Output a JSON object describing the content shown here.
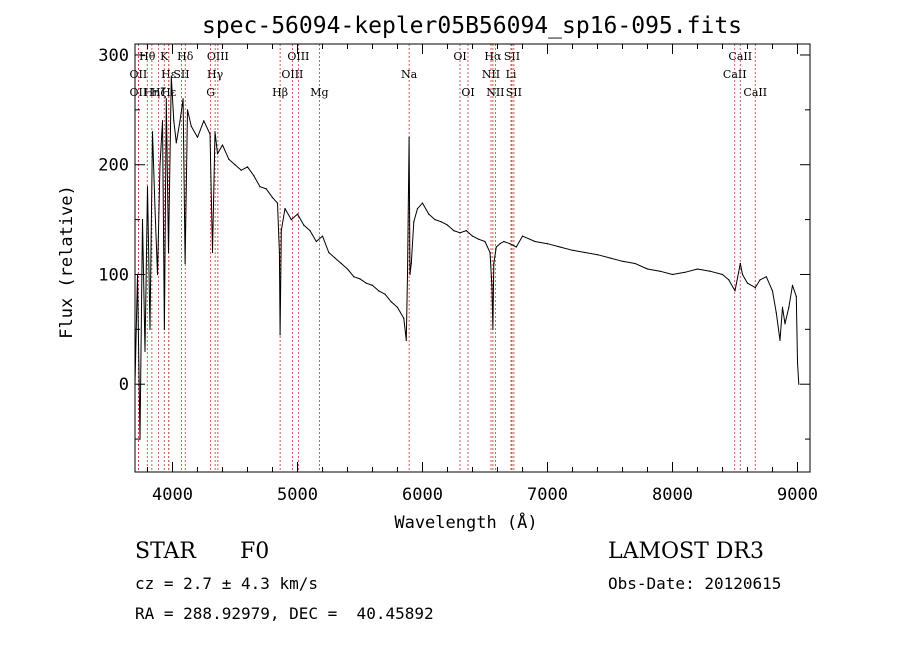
{
  "chart_data": {
    "type": "line",
    "title": "spec-56094-kepler05B56094_sp16-095.fits",
    "xlabel": "Wavelength (Å)",
    "ylabel": "Flux (relative)",
    "xlim": [
      3700,
      9100
    ],
    "ylim": [
      -80,
      310
    ],
    "xticks": [
      4000,
      5000,
      6000,
      7000,
      8000,
      9000
    ],
    "yticks": [
      0,
      100,
      200,
      300
    ],
    "grid": false,
    "series": [
      {
        "name": "spectrum",
        "x": [
          3700,
          3720,
          3740,
          3760,
          3780,
          3800,
          3820,
          3840,
          3860,
          3880,
          3900,
          3920,
          3935,
          3950,
          3968,
          3990,
          4010,
          4030,
          4060,
          4085,
          4101,
          4120,
          4150,
          4200,
          4250,
          4300,
          4320,
          4340,
          4360,
          4400,
          4450,
          4500,
          4550,
          4600,
          4650,
          4700,
          4750,
          4800,
          4840,
          4855,
          4861,
          4870,
          4900,
          4950,
          5000,
          5050,
          5100,
          5150,
          5200,
          5250,
          5300,
          5350,
          5400,
          5450,
          5500,
          5550,
          5600,
          5650,
          5700,
          5750,
          5800,
          5850,
          5870,
          5880,
          5893,
          5900,
          5910,
          5930,
          5960,
          6000,
          6050,
          6100,
          6150,
          6200,
          6250,
          6300,
          6350,
          6400,
          6450,
          6500,
          6540,
          6555,
          6563,
          6570,
          6590,
          6620,
          6650,
          6700,
          6750,
          6800,
          6900,
          7000,
          7100,
          7200,
          7300,
          7400,
          7500,
          7600,
          7700,
          7800,
          7900,
          8000,
          8100,
          8200,
          8300,
          8400,
          8450,
          8500,
          8542,
          8560,
          8600,
          8662,
          8700,
          8750,
          8800,
          8830,
          8860,
          8880,
          8900,
          8930,
          8960,
          8990,
          9000,
          9010
        ],
        "values": [
          0,
          100,
          -50,
          150,
          30,
          180,
          50,
          230,
          160,
          100,
          200,
          240,
          50,
          260,
          120,
          280,
          240,
          220,
          240,
          260,
          110,
          250,
          235,
          225,
          240,
          228,
          120,
          230,
          210,
          218,
          205,
          200,
          195,
          198,
          190,
          180,
          178,
          170,
          165,
          120,
          45,
          140,
          160,
          150,
          155,
          145,
          140,
          130,
          135,
          120,
          115,
          110,
          105,
          98,
          96,
          92,
          90,
          85,
          82,
          75,
          70,
          60,
          40,
          100,
          225,
          100,
          110,
          148,
          160,
          165,
          155,
          150,
          148,
          145,
          140,
          138,
          140,
          135,
          132,
          130,
          120,
          90,
          50,
          110,
          125,
          128,
          130,
          128,
          125,
          135,
          130,
          128,
          125,
          122,
          120,
          118,
          115,
          112,
          110,
          105,
          103,
          100,
          102,
          105,
          103,
          100,
          95,
          85,
          110,
          100,
          92,
          88,
          95,
          98,
          85,
          65,
          40,
          70,
          55,
          70,
          90,
          80,
          20,
          0
        ]
      }
    ],
    "lines": [
      {
        "label": "Hθ",
        "x": 3798,
        "row": 0
      },
      {
        "label": "OII",
        "x": 3727,
        "row": 1
      },
      {
        "label": "OII",
        "x": 3727,
        "row": 2
      },
      {
        "label": "Hη",
        "x": 3835,
        "row": 2
      },
      {
        "label": "K",
        "x": 3934,
        "row": 0
      },
      {
        "label": "Hε",
        "x": 3970,
        "row": 1
      },
      {
        "label": "Hζ",
        "x": 3889,
        "row": 2
      },
      {
        "label": "Hδ",
        "x": 4102,
        "row": 0
      },
      {
        "label": "SII",
        "x": 4072,
        "row": 1
      },
      {
        "label": "Hε",
        "x": 3970,
        "row": 2
      },
      {
        "label": "OIII",
        "x": 4363,
        "row": 0
      },
      {
        "label": "Hγ",
        "x": 4341,
        "row": 1
      },
      {
        "label": "G",
        "x": 4305,
        "row": 2
      },
      {
        "label": "Hβ",
        "x": 4861,
        "row": 2
      },
      {
        "label": "OIII",
        "x": 5007,
        "row": 0
      },
      {
        "label": "OIII",
        "x": 4959,
        "row": 1
      },
      {
        "label": "Mg",
        "x": 5175,
        "row": 2
      },
      {
        "label": "Na",
        "x": 5893,
        "row": 1
      },
      {
        "label": "OI",
        "x": 6300,
        "row": 0
      },
      {
        "label": "OI",
        "x": 6364,
        "row": 2
      },
      {
        "label": "Hα",
        "x": 6563,
        "row": 0
      },
      {
        "label": "NII",
        "x": 6548,
        "row": 1
      },
      {
        "label": "NII",
        "x": 6583,
        "row": 2
      },
      {
        "label": "SII",
        "x": 6716,
        "row": 0
      },
      {
        "label": "Li",
        "x": 6708,
        "row": 1
      },
      {
        "label": "SII",
        "x": 6731,
        "row": 2
      },
      {
        "label": "CaII",
        "x": 8542,
        "row": 0
      },
      {
        "label": "CaII",
        "x": 8498,
        "row": 1
      },
      {
        "label": "CaII",
        "x": 8662,
        "row": 2
      }
    ]
  },
  "info": {
    "class_label": "STAR",
    "subclass": "F0",
    "survey": "LAMOST DR3",
    "cz": "cz = 2.7 ± 4.3 km/s",
    "obs_date": "Obs-Date: 20120615",
    "coords": "RA = 288.92979, DEC =  40.45892"
  }
}
